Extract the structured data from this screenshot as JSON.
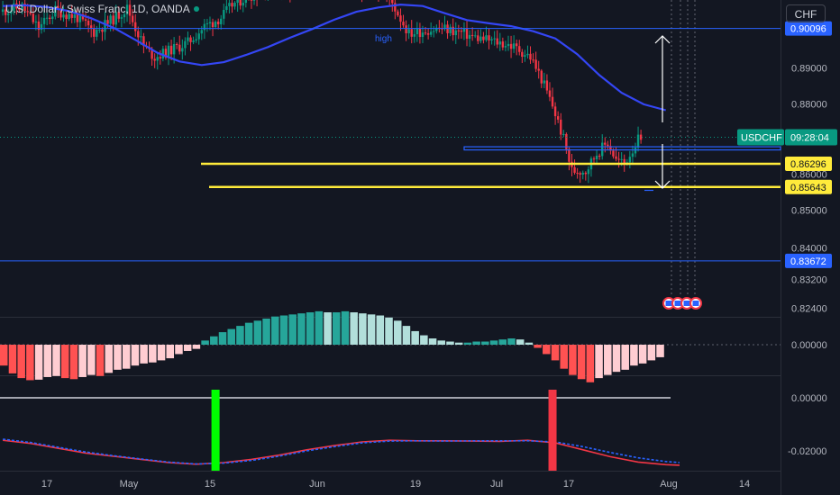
{
  "header": {
    "title": "U.S. Dollar / Swiss Franc, 1D, OANDA",
    "currency": "CHF"
  },
  "symbol_tag": {
    "symbol": "USDCHF",
    "countdown": "09:28:04"
  },
  "colors": {
    "background": "#131722",
    "up": "#089981",
    "down": "#f23645",
    "ma": "#3446f5",
    "yellow": "#ffeb3b",
    "level": "#2962ff",
    "hist_up_strong": "#26a69a",
    "hist_up_weak": "#b2dfdb",
    "hist_down_strong": "#ff5252",
    "hist_down_weak": "#ffcdd2",
    "signal_buy": "#00ff00",
    "signal_sell": "#f23645"
  },
  "chart_data": [
    {
      "type": "candlestick",
      "x_ticks": [
        "17",
        "May",
        "15",
        "Jun",
        "19",
        "Jul",
        "17",
        "Aug",
        "14"
      ],
      "y_ticks": [
        0.824,
        0.832,
        0.84,
        0.85,
        0.86,
        0.88,
        0.89
      ],
      "ylim": [
        0.82,
        0.91
      ],
      "price_levels": [
        {
          "label": "0.90096",
          "value": 0.90096,
          "style": "line"
        },
        {
          "label": "0.86296",
          "value": 0.86296,
          "style": "yellow"
        },
        {
          "label": "0.85643",
          "value": 0.85643,
          "style": "yellow"
        },
        {
          "label": "0.83672",
          "value": 0.83672,
          "style": "line"
        }
      ],
      "annotation": "high",
      "moving_average": [
        [
          0,
          0.9072
        ],
        [
          8,
          0.9074
        ],
        [
          16,
          0.9069
        ],
        [
          24,
          0.9058
        ],
        [
          32,
          0.9038
        ],
        [
          40,
          0.9012
        ],
        [
          48,
          0.8978
        ],
        [
          56,
          0.8942
        ],
        [
          64,
          0.8918
        ],
        [
          72,
          0.8908
        ],
        [
          80,
          0.8916
        ],
        [
          88,
          0.8936
        ],
        [
          96,
          0.8958
        ],
        [
          104,
          0.8984
        ],
        [
          112,
          0.9008
        ],
        [
          120,
          0.9034
        ],
        [
          128,
          0.9056
        ],
        [
          136,
          0.9068
        ],
        [
          144,
          0.9076
        ],
        [
          152,
          0.9072
        ],
        [
          160,
          0.9052
        ],
        [
          168,
          0.9033
        ],
        [
          176,
          0.9024
        ],
        [
          184,
          0.9016
        ],
        [
          192,
          0.9002
        ],
        [
          200,
          0.8982
        ],
        [
          208,
          0.8938
        ],
        [
          216,
          0.888
        ],
        [
          224,
          0.8831
        ],
        [
          232,
          0.8799
        ],
        [
          240,
          0.8782
        ]
      ]
    },
    {
      "type": "bar",
      "name": "momentum histogram",
      "y_ticks": [
        0.0
      ],
      "values": [
        -0.004,
        -0.0055,
        -0.0064,
        -0.0068,
        -0.0067,
        -0.0062,
        -0.006,
        -0.0064,
        -0.0066,
        -0.0062,
        -0.0058,
        -0.006,
        -0.0054,
        -0.0048,
        -0.0046,
        -0.004,
        -0.0036,
        -0.0034,
        -0.003,
        -0.0026,
        -0.0018,
        -0.0012,
        -0.0008,
        0.0008,
        0.0016,
        0.0024,
        0.003,
        0.0036,
        0.0042,
        0.0046,
        0.005,
        0.0054,
        0.0056,
        0.0058,
        0.006,
        0.0062,
        0.0064,
        0.0062,
        0.0062,
        0.0064,
        0.0062,
        0.006,
        0.0058,
        0.0056,
        0.0052,
        0.0046,
        0.0036,
        0.0026,
        0.0018,
        0.0012,
        0.0008,
        0.0006,
        0.0004,
        0.0004,
        0.0006,
        0.0006,
        0.0008,
        0.001,
        0.0012,
        0.001,
        0.0004,
        -0.0006,
        -0.0018,
        -0.003,
        -0.0046,
        -0.0058,
        -0.0066,
        -0.0072,
        -0.0064,
        -0.0058,
        -0.0052,
        -0.0048,
        -0.004,
        -0.0036,
        -0.003,
        -0.0024
      ]
    },
    {
      "type": "line",
      "name": "oscillator",
      "y_ticks": [
        0.0,
        -0.02
      ],
      "ylim": [
        -0.029,
        0.003
      ],
      "series": [
        {
          "color": "#f23645",
          "points": [
            [
              0,
              -0.016
            ],
            [
              10,
              -0.0172
            ],
            [
              20,
              -0.019
            ],
            [
              30,
              -0.0208
            ],
            [
              40,
              -0.022
            ],
            [
              50,
              -0.0232
            ],
            [
              60,
              -0.0244
            ],
            [
              70,
              -0.025
            ],
            [
              80,
              -0.0244
            ],
            [
              90,
              -0.0232
            ],
            [
              100,
              -0.0216
            ],
            [
              110,
              -0.0196
            ],
            [
              120,
              -0.018
            ],
            [
              130,
              -0.0166
            ],
            [
              140,
              -0.016
            ],
            [
              150,
              -0.0162
            ],
            [
              160,
              -0.0162
            ],
            [
              170,
              -0.0163
            ],
            [
              180,
              -0.0164
            ],
            [
              190,
              -0.016
            ],
            [
              200,
              -0.017
            ],
            [
              210,
              -0.0196
            ],
            [
              220,
              -0.0222
            ],
            [
              230,
              -0.0242
            ],
            [
              240,
              -0.0252
            ],
            [
              245,
              -0.0254
            ]
          ]
        },
        {
          "color": "#2962ff",
          "dashed": true,
          "points": [
            [
              0,
              -0.0156
            ],
            [
              10,
              -0.0168
            ],
            [
              20,
              -0.0186
            ],
            [
              30,
              -0.0204
            ],
            [
              40,
              -0.0218
            ],
            [
              50,
              -0.023
            ],
            [
              60,
              -0.0242
            ],
            [
              70,
              -0.0249
            ],
            [
              80,
              -0.0246
            ],
            [
              90,
              -0.0236
            ],
            [
              100,
              -0.022
            ],
            [
              110,
              -0.02
            ],
            [
              120,
              -0.0184
            ],
            [
              130,
              -0.017
            ],
            [
              140,
              -0.0163
            ],
            [
              150,
              -0.0162
            ],
            [
              160,
              -0.0163
            ],
            [
              170,
              -0.0162
            ],
            [
              180,
              -0.0162
            ],
            [
              190,
              -0.0162
            ],
            [
              200,
              -0.0166
            ],
            [
              210,
              -0.0184
            ],
            [
              220,
              -0.0206
            ],
            [
              230,
              -0.0226
            ],
            [
              240,
              -0.024
            ],
            [
              245,
              -0.0244
            ]
          ]
        }
      ],
      "signals": [
        {
          "type": "buy",
          "x": 77
        },
        {
          "type": "sell",
          "x": 199
        }
      ]
    }
  ]
}
